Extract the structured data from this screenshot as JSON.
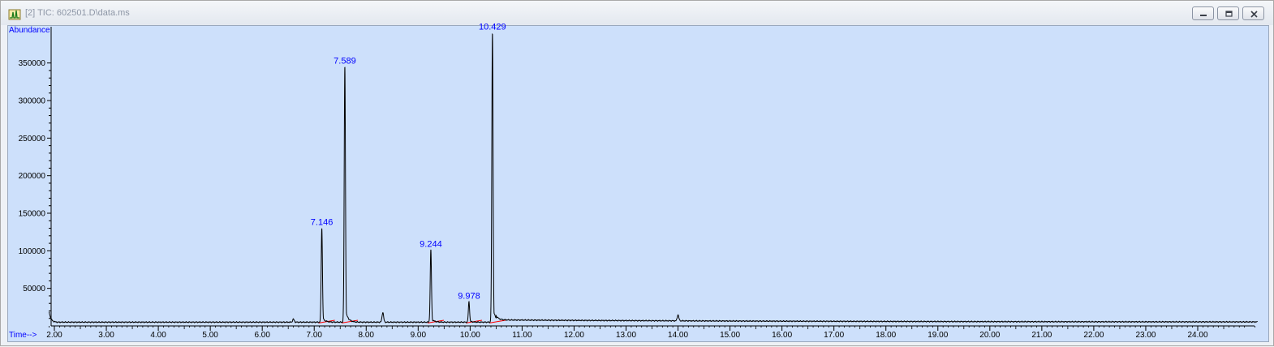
{
  "window": {
    "title": "[2] TIC: 602501.D\\data.ms",
    "buttons": [
      "minimize-icon",
      "restore-icon",
      "close-icon"
    ]
  },
  "colors": {
    "plot_bg": "#cde0fb",
    "trace": "#000000",
    "peak_label": "#0000ff",
    "axis_label": "#0000ff",
    "baseline": "#ff0000"
  },
  "chart_data": {
    "type": "line",
    "title": "",
    "xlabel": "Time-->",
    "ylabel": "Abundance",
    "xlim": [
      1.9,
      25.2
    ],
    "ylim": [
      0,
      395000
    ],
    "x_ticks": [
      "2.00",
      "3.00",
      "4.00",
      "5.00",
      "6.00",
      "7.00",
      "8.00",
      "9.00",
      "10.00",
      "11.00",
      "12.00",
      "13.00",
      "14.00",
      "15.00",
      "16.00",
      "17.00",
      "18.00",
      "19.00",
      "20.00",
      "21.00",
      "22.00",
      "23.00",
      "24.00"
    ],
    "y_ticks": [
      "50000",
      "100000",
      "150000",
      "200000",
      "250000",
      "300000",
      "350000"
    ],
    "grid": false,
    "peaks": [
      {
        "label": "7.146",
        "rt": 7.146,
        "height": 130000
      },
      {
        "label": "7.589",
        "rt": 7.589,
        "height": 345000
      },
      {
        "label": "9.244",
        "rt": 9.244,
        "height": 101000
      },
      {
        "label": "9.978",
        "rt": 9.978,
        "height": 32000
      },
      {
        "label": "10.429",
        "rt": 10.429,
        "height": 390000
      }
    ],
    "minor_peaks": [
      {
        "rt": 6.6,
        "height": 4000
      },
      {
        "rt": 8.32,
        "height": 13000
      },
      {
        "rt": 14.0,
        "height": 8000
      }
    ],
    "baseline": 5000
  }
}
